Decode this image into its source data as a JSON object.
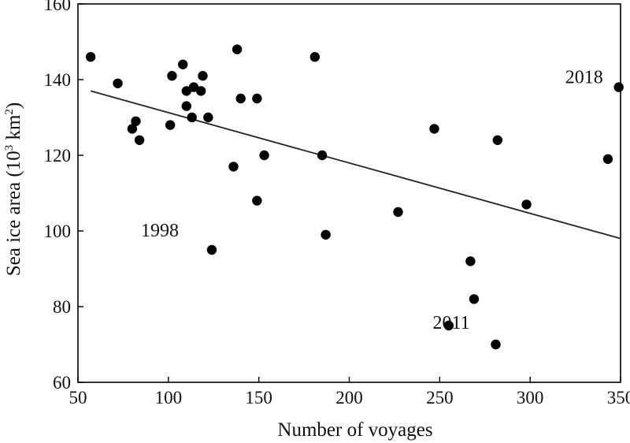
{
  "chart_data": {
    "type": "scatter",
    "title": "",
    "xlabel": "Number of voyages",
    "ylabel_main": "Sea ice area (10",
    "ylabel_sup1": "3",
    "ylabel_mid": " km",
    "ylabel_sup2": "2",
    "ylabel_end": ")",
    "xlim": [
      50,
      350
    ],
    "ylim": [
      60,
      160
    ],
    "xticks": [
      50,
      100,
      150,
      200,
      250,
      300,
      350
    ],
    "yticks": [
      60,
      80,
      100,
      120,
      140,
      160
    ],
    "grid": false,
    "legend": "none",
    "point_color": "#000000",
    "line_color": "#222222",
    "series": [
      {
        "points": [
          {
            "x": 57,
            "y": 146
          },
          {
            "x": 72,
            "y": 139
          },
          {
            "x": 80,
            "y": 127
          },
          {
            "x": 82,
            "y": 129
          },
          {
            "x": 84,
            "y": 124
          },
          {
            "x": 101,
            "y": 128
          },
          {
            "x": 102,
            "y": 141
          },
          {
            "x": 108,
            "y": 144
          },
          {
            "x": 110,
            "y": 137
          },
          {
            "x": 110,
            "y": 133
          },
          {
            "x": 113,
            "y": 130
          },
          {
            "x": 114,
            "y": 138
          },
          {
            "x": 118,
            "y": 137
          },
          {
            "x": 119,
            "y": 141
          },
          {
            "x": 122,
            "y": 130
          },
          {
            "x": 124,
            "y": 95
          },
          {
            "x": 136,
            "y": 117
          },
          {
            "x": 138,
            "y": 148
          },
          {
            "x": 140,
            "y": 135
          },
          {
            "x": 149,
            "y": 135
          },
          {
            "x": 149,
            "y": 108
          },
          {
            "x": 153,
            "y": 120
          },
          {
            "x": 181,
            "y": 146
          },
          {
            "x": 185,
            "y": 120
          },
          {
            "x": 187,
            "y": 99
          },
          {
            "x": 227,
            "y": 105
          },
          {
            "x": 247,
            "y": 127
          },
          {
            "x": 255,
            "y": 75
          },
          {
            "x": 267,
            "y": 92
          },
          {
            "x": 269,
            "y": 82
          },
          {
            "x": 281,
            "y": 70
          },
          {
            "x": 282,
            "y": 124
          },
          {
            "x": 298,
            "y": 107
          },
          {
            "x": 343,
            "y": 119
          },
          {
            "x": 349,
            "y": 138
          }
        ]
      }
    ],
    "trendline": {
      "x": [
        57,
        350
      ],
      "y": [
        137,
        98
      ]
    },
    "annotations": [
      {
        "text": "2018",
        "x": 349,
        "y": 138
      },
      {
        "text": "1998",
        "x": 124,
        "y": 95
      },
      {
        "text": "2011",
        "x": 281,
        "y": 70
      }
    ]
  }
}
